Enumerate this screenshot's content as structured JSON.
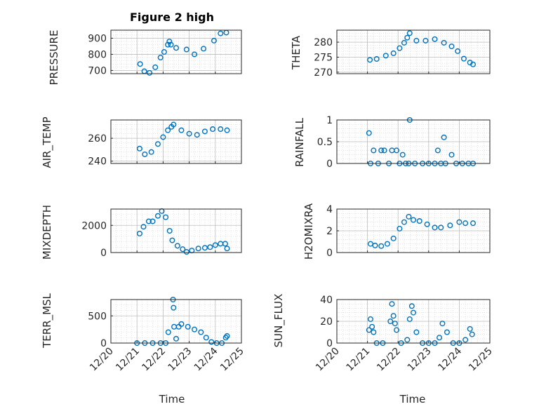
{
  "figure": {
    "title": "Figure 2 high",
    "xlabel": "Time",
    "marker_color": "#0072BD",
    "x_tick_labels": [
      "12/20",
      "12/21",
      "12/22",
      "12/23",
      "12/24",
      "12/25"
    ]
  },
  "chart_data": [
    {
      "type": "scatter",
      "name": "PRESSURE",
      "ylabel": "PRESSURE",
      "ylim": [
        680,
        950
      ],
      "yticks": [
        700,
        800,
        900
      ],
      "xlim": [
        "12/20",
        "12/25"
      ],
      "grid": true,
      "x": [
        21.12,
        21.28,
        21.48,
        21.7,
        21.9,
        22.04,
        22.18,
        22.24,
        22.3,
        22.5,
        22.9,
        23.2,
        23.55,
        23.95,
        24.2,
        24.42
      ],
      "y": [
        740,
        695,
        685,
        720,
        780,
        815,
        860,
        880,
        860,
        840,
        830,
        800,
        835,
        885,
        930,
        935
      ]
    },
    {
      "type": "scatter",
      "name": "THETA",
      "ylabel": "THETA",
      "ylim": [
        269.5,
        284
      ],
      "yticks": [
        270,
        275,
        280
      ],
      "xlim": [
        "12/20",
        "12/25"
      ],
      "grid": true,
      "x": [
        21.08,
        21.3,
        21.6,
        21.85,
        22.05,
        22.2,
        22.3,
        22.38,
        22.6,
        22.9,
        23.2,
        23.5,
        23.75,
        23.95,
        24.15,
        24.35,
        24.45
      ],
      "y": [
        274.1,
        274.4,
        275.5,
        276.3,
        278,
        279.8,
        281.5,
        283,
        280.5,
        280.5,
        281,
        279.8,
        278.6,
        277,
        274.5,
        273.2,
        272.6
      ]
    },
    {
      "type": "scatter",
      "name": "AIR_TEMP",
      "ylabel": "AIR_TEMP",
      "ylim": [
        238,
        276
      ],
      "yticks": [
        240,
        260
      ],
      "xlim": [
        "12/20",
        "12/25"
      ],
      "grid": true,
      "x": [
        21.1,
        21.3,
        21.55,
        21.8,
        22.0,
        22.18,
        22.32,
        22.4,
        22.7,
        23.0,
        23.3,
        23.6,
        23.9,
        24.2,
        24.45
      ],
      "y": [
        251,
        246,
        248,
        255,
        261,
        267,
        270,
        272,
        267,
        264,
        263,
        266,
        268,
        268,
        267
      ]
    },
    {
      "type": "scatter",
      "name": "RAINFALL",
      "ylabel": "RAINFALL",
      "ylim": [
        0,
        1
      ],
      "yticks": [
        0,
        0.5,
        1
      ],
      "xlim": [
        "12/20",
        "12/25"
      ],
      "grid": true,
      "x": [
        21.05,
        21.1,
        21.2,
        21.35,
        21.45,
        21.55,
        21.7,
        21.8,
        21.95,
        22.05,
        22.15,
        22.25,
        22.35,
        22.38,
        22.55,
        22.8,
        23.0,
        23.2,
        23.3,
        23.4,
        23.5,
        23.55,
        23.75,
        23.9,
        24.1,
        24.3,
        24.45
      ],
      "y": [
        0.7,
        0,
        0.3,
        0,
        0.3,
        0.3,
        0,
        0.3,
        0.3,
        0,
        0.2,
        0,
        0,
        1,
        0,
        0,
        0,
        0,
        0.3,
        0,
        0.6,
        0,
        0.2,
        0,
        0,
        0,
        0
      ]
    },
    {
      "type": "scatter",
      "name": "MIXDEPTH",
      "ylabel": "MIXDEPTH",
      "ylim": [
        0,
        3200
      ],
      "yticks": [
        0,
        2000
      ],
      "xlim": [
        "12/20",
        "12/25"
      ],
      "grid": true,
      "x": [
        21.1,
        21.25,
        21.45,
        21.6,
        21.8,
        21.95,
        22.1,
        22.25,
        22.35,
        22.55,
        22.75,
        22.9,
        23.1,
        23.35,
        23.6,
        23.8,
        24.0,
        24.2,
        24.38,
        24.45
      ],
      "y": [
        1400,
        1900,
        2300,
        2300,
        2700,
        3050,
        2600,
        1600,
        900,
        500,
        250,
        50,
        150,
        300,
        350,
        400,
        550,
        650,
        650,
        300
      ]
    },
    {
      "type": "scatter",
      "name": "H2OMIXRA",
      "ylabel": "H2OMIXRA",
      "ylim": [
        0,
        4
      ],
      "yticks": [
        0,
        2,
        4
      ],
      "xlim": [
        "12/20",
        "12/25"
      ],
      "grid": true,
      "x": [
        21.1,
        21.25,
        21.45,
        21.65,
        21.85,
        22.05,
        22.2,
        22.35,
        22.5,
        22.7,
        22.95,
        23.2,
        23.4,
        23.7,
        24.0,
        24.2,
        24.45
      ],
      "y": [
        0.8,
        0.65,
        0.6,
        0.8,
        1.3,
        2.2,
        2.8,
        3.3,
        3.0,
        2.9,
        2.6,
        2.3,
        2.3,
        2.5,
        2.8,
        2.7,
        2.7
      ]
    },
    {
      "type": "scatter",
      "name": "TERR_MSL",
      "ylabel": "TERR_MSL",
      "ylim": [
        0,
        800
      ],
      "yticks": [
        0,
        500
      ],
      "xlim": [
        "12/20",
        "12/25"
      ],
      "grid": true,
      "x": [
        21.0,
        21.3,
        21.6,
        21.9,
        22.1,
        22.2,
        22.38,
        22.4,
        22.42,
        22.5,
        22.6,
        22.7,
        22.95,
        23.2,
        23.45,
        23.65,
        23.85,
        24.05,
        24.25,
        24.4,
        24.45
      ],
      "y": [
        0,
        0,
        0,
        0,
        0,
        200,
        800,
        650,
        300,
        80,
        300,
        350,
        300,
        250,
        200,
        100,
        20,
        0,
        0,
        100,
        130
      ]
    },
    {
      "type": "scatter",
      "name": "SUN_FLUX",
      "ylabel": "SUN_FLUX",
      "ylim": [
        0,
        40
      ],
      "yticks": [
        0,
        20,
        40
      ],
      "xlim": [
        "12/20",
        "12/25"
      ],
      "grid": true,
      "x": [
        21.05,
        21.1,
        21.15,
        21.2,
        21.3,
        21.5,
        21.75,
        21.8,
        21.85,
        21.9,
        21.95,
        22.1,
        22.3,
        22.38,
        22.45,
        22.5,
        22.6,
        22.8,
        23.0,
        23.2,
        23.35,
        23.45,
        23.6,
        23.8,
        24.0,
        24.2,
        24.35,
        24.42
      ],
      "y": [
        12,
        22,
        15,
        10,
        0,
        0,
        20,
        36,
        25,
        18,
        12,
        0,
        3,
        22,
        34,
        28,
        10,
        0,
        0,
        0,
        5,
        18,
        10,
        0,
        0,
        3,
        13,
        8
      ]
    }
  ]
}
